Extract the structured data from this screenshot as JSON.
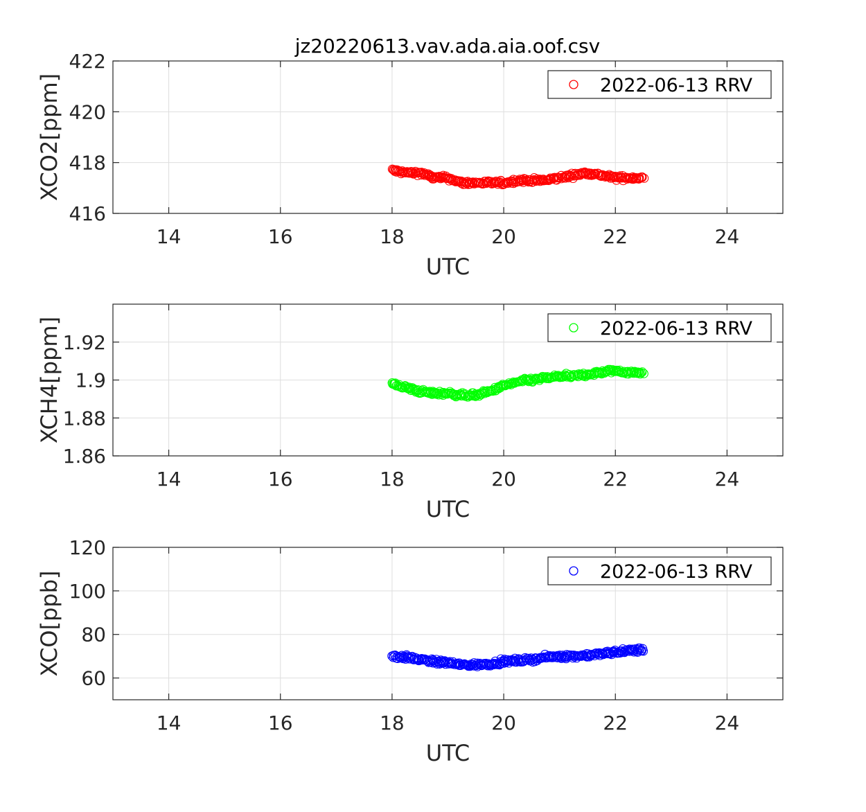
{
  "figure": {
    "title": "jz20220613.vav.ada.aia.oof.csv"
  },
  "chart_data": [
    {
      "type": "scatter",
      "ylabel": "XCO2[ppm]",
      "xlabel": "UTC",
      "xlim": [
        13,
        25
      ],
      "ylim": [
        416,
        422
      ],
      "xticks": [
        "14",
        "16",
        "18",
        "20",
        "22",
        "24"
      ],
      "yticks": [
        "416",
        "418",
        "420",
        "422"
      ],
      "grid": true,
      "legend_position": "top-right",
      "color": "#ff0000",
      "series": [
        {
          "name": "2022-06-13 RRV",
          "x": [
            18.0,
            18.25,
            18.5,
            18.75,
            19.0,
            19.25,
            19.5,
            19.75,
            20.0,
            20.25,
            20.5,
            20.75,
            21.0,
            21.25,
            21.5,
            21.75,
            22.0,
            22.25,
            22.5
          ],
          "y": [
            417.7,
            417.6,
            417.6,
            417.4,
            417.4,
            417.2,
            417.2,
            417.2,
            417.2,
            417.3,
            417.3,
            417.3,
            417.4,
            417.5,
            417.6,
            417.5,
            417.4,
            417.4,
            417.4
          ]
        }
      ]
    },
    {
      "type": "scatter",
      "ylabel": "XCH4[ppm]",
      "xlabel": "UTC",
      "xlim": [
        13,
        25
      ],
      "ylim": [
        1.86,
        1.94
      ],
      "xticks": [
        "14",
        "16",
        "18",
        "20",
        "22",
        "24"
      ],
      "yticks": [
        "1.86",
        "1.88",
        "1.9",
        "1.92"
      ],
      "grid": true,
      "legend_position": "top-right",
      "color": "#00ff00",
      "series": [
        {
          "name": "2022-06-13 RRV",
          "x": [
            18.0,
            18.25,
            18.5,
            18.75,
            19.0,
            19.25,
            19.5,
            19.75,
            20.0,
            20.25,
            20.5,
            20.75,
            21.0,
            21.25,
            21.5,
            21.75,
            22.0,
            22.25,
            22.5
          ],
          "y": [
            1.898,
            1.896,
            1.894,
            1.893,
            1.893,
            1.892,
            1.892,
            1.894,
            1.897,
            1.899,
            1.9,
            1.901,
            1.902,
            1.902,
            1.903,
            1.904,
            1.905,
            1.904,
            1.904
          ]
        }
      ]
    },
    {
      "type": "scatter",
      "ylabel": "XCO[ppb]",
      "xlabel": "UTC",
      "xlim": [
        13,
        25
      ],
      "ylim": [
        50,
        120
      ],
      "xticks": [
        "14",
        "16",
        "18",
        "20",
        "22",
        "24"
      ],
      "yticks": [
        "60",
        "80",
        "100",
        "120"
      ],
      "grid": true,
      "legend_position": "top-right",
      "color": "#0000ff",
      "series": [
        {
          "name": "2022-06-13 RRV",
          "x": [
            18.0,
            18.25,
            18.5,
            18.75,
            19.0,
            19.25,
            19.5,
            19.75,
            20.0,
            20.25,
            20.5,
            20.75,
            21.0,
            21.25,
            21.5,
            21.75,
            22.0,
            22.25,
            22.5
          ],
          "y": [
            70,
            69.5,
            68.5,
            67.5,
            67,
            66,
            66,
            66.5,
            67.5,
            68,
            68.5,
            69.5,
            70,
            70,
            70.5,
            71,
            72,
            72.5,
            73
          ]
        }
      ]
    }
  ]
}
